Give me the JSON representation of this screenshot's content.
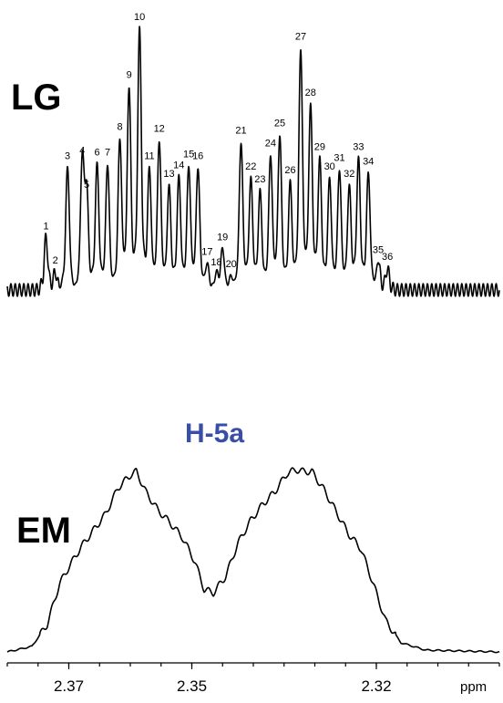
{
  "colors": {
    "trace": "#000000",
    "annotation": "#3a4ea8"
  },
  "chart_data": {
    "type": "line",
    "xlabel": "ppm",
    "xlim": [
      2.38,
      2.3
    ],
    "x_reversed": true,
    "xticks": [
      2.37,
      2.35,
      2.32
    ],
    "xtick_labels": [
      "2.37",
      "2.35",
      "2.32"
    ],
    "grid": false,
    "annotation": "H-5a",
    "series": [
      {
        "name": "LG",
        "peaks": [
          {
            "label": "1",
            "x": 2.3737,
            "y": 0.29
          },
          {
            "label": "2",
            "x": 2.3722,
            "y": 0.1
          },
          {
            "label": "3",
            "x": 2.3702,
            "y": 0.68
          },
          {
            "label": "4",
            "x": 2.3678,
            "y": 0.71
          },
          {
            "label": "5",
            "x": 2.3671,
            "y": 0.52
          },
          {
            "label": "6",
            "x": 2.3654,
            "y": 0.7
          },
          {
            "label": "7",
            "x": 2.3637,
            "y": 0.7
          },
          {
            "label": "8",
            "x": 2.3617,
            "y": 0.84
          },
          {
            "label": "9",
            "x": 2.3602,
            "y": 1.13
          },
          {
            "label": "10",
            "x": 2.3585,
            "y": 1.45
          },
          {
            "label": "11",
            "x": 2.3569,
            "y": 0.68
          },
          {
            "label": "12",
            "x": 2.3553,
            "y": 0.83
          },
          {
            "label": "13",
            "x": 2.3537,
            "y": 0.58
          },
          {
            "label": "14",
            "x": 2.3521,
            "y": 0.63
          },
          {
            "label": "15",
            "x": 2.3505,
            "y": 0.69
          },
          {
            "label": "16",
            "x": 2.349,
            "y": 0.68
          },
          {
            "label": "17",
            "x": 2.3475,
            "y": 0.15
          },
          {
            "label": "18",
            "x": 2.346,
            "y": 0.09
          },
          {
            "label": "19",
            "x": 2.345,
            "y": 0.23
          },
          {
            "label": "20",
            "x": 2.3436,
            "y": 0.08
          },
          {
            "label": "21",
            "x": 2.342,
            "y": 0.82
          },
          {
            "label": "22",
            "x": 2.3404,
            "y": 0.62
          },
          {
            "label": "23",
            "x": 2.3389,
            "y": 0.55
          },
          {
            "label": "24",
            "x": 2.3372,
            "y": 0.75
          },
          {
            "label": "25",
            "x": 2.3357,
            "y": 0.86
          },
          {
            "label": "26",
            "x": 2.334,
            "y": 0.6
          },
          {
            "label": "27",
            "x": 2.3323,
            "y": 1.34
          },
          {
            "label": "28",
            "x": 2.3307,
            "y": 1.03
          },
          {
            "label": "29",
            "x": 2.3292,
            "y": 0.73
          },
          {
            "label": "30",
            "x": 2.3276,
            "y": 0.62
          },
          {
            "label": "31",
            "x": 2.326,
            "y": 0.67
          },
          {
            "label": "32",
            "x": 2.3244,
            "y": 0.58
          },
          {
            "label": "33",
            "x": 2.3229,
            "y": 0.73
          },
          {
            "label": "34",
            "x": 2.3213,
            "y": 0.65
          },
          {
            "label": "35",
            "x": 2.3197,
            "y": 0.16
          },
          {
            "label": "36",
            "x": 2.3182,
            "y": 0.12
          }
        ]
      },
      {
        "name": "EM",
        "envelope": [
          [
            2.38,
            0.01
          ],
          [
            2.376,
            0.04
          ],
          [
            2.3735,
            0.16
          ],
          [
            2.3715,
            0.38
          ],
          [
            2.37,
            0.47
          ],
          [
            2.368,
            0.58
          ],
          [
            2.366,
            0.67
          ],
          [
            2.364,
            0.76
          ],
          [
            2.362,
            0.9
          ],
          [
            2.36,
            0.97
          ],
          [
            2.359,
            0.99
          ],
          [
            2.3575,
            0.88
          ],
          [
            2.3555,
            0.78
          ],
          [
            2.3535,
            0.71
          ],
          [
            2.3515,
            0.63
          ],
          [
            2.3495,
            0.5
          ],
          [
            2.348,
            0.35
          ],
          [
            2.3465,
            0.33
          ],
          [
            2.3445,
            0.42
          ],
          [
            2.3425,
            0.6
          ],
          [
            2.3405,
            0.72
          ],
          [
            2.3385,
            0.81
          ],
          [
            2.3365,
            0.88
          ],
          [
            2.3345,
            0.98
          ],
          [
            2.333,
            1.0
          ],
          [
            2.332,
            0.99
          ],
          [
            2.3305,
            0.99
          ],
          [
            2.3285,
            0.89
          ],
          [
            2.3265,
            0.77
          ],
          [
            2.3245,
            0.65
          ],
          [
            2.3225,
            0.57
          ],
          [
            2.3205,
            0.38
          ],
          [
            2.3185,
            0.18
          ],
          [
            2.316,
            0.06
          ],
          [
            2.312,
            0.02
          ],
          [
            2.3,
            0.01
          ]
        ]
      }
    ]
  }
}
